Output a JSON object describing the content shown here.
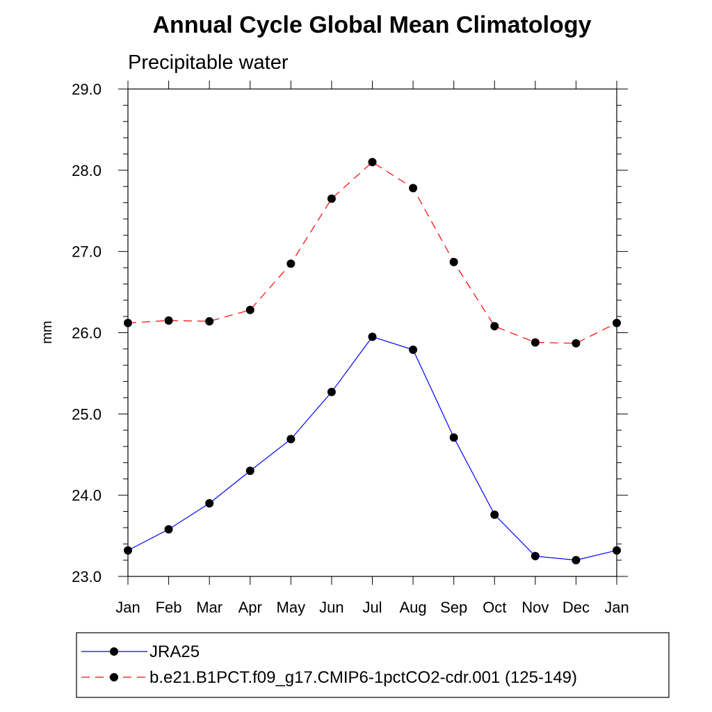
{
  "chart_data": {
    "type": "line",
    "title": "Annual Cycle Global Mean Climatology",
    "subtitle": "Precipitable water",
    "xlabel": "",
    "ylabel": "mm",
    "categories": [
      "Jan",
      "Feb",
      "Mar",
      "Apr",
      "May",
      "Jun",
      "Jul",
      "Aug",
      "Sep",
      "Oct",
      "Nov",
      "Dec",
      "Jan"
    ],
    "ylim": [
      23.0,
      29.0
    ],
    "yticks": [
      "23.0",
      "24.0",
      "25.0",
      "26.0",
      "27.0",
      "28.0",
      "29.0"
    ],
    "grid": false,
    "legend_position": "bottom",
    "series": [
      {
        "name": "JRA25",
        "color": "#0000ff",
        "line_style": "solid",
        "marker": "filled-circle",
        "values": [
          23.32,
          23.58,
          23.9,
          24.3,
          24.69,
          25.27,
          25.95,
          25.79,
          24.71,
          23.76,
          23.25,
          23.2,
          23.32
        ]
      },
      {
        "name": "b.e21.B1PCT.f09_g17.CMIP6-1pctCO2-cdr.001 (125-149)",
        "color": "#ff0000",
        "line_style": "dashed",
        "marker": "filled-circle",
        "values": [
          26.12,
          26.15,
          26.14,
          26.28,
          26.85,
          27.65,
          28.1,
          27.78,
          26.87,
          26.08,
          25.88,
          25.87,
          26.12
        ]
      }
    ]
  }
}
